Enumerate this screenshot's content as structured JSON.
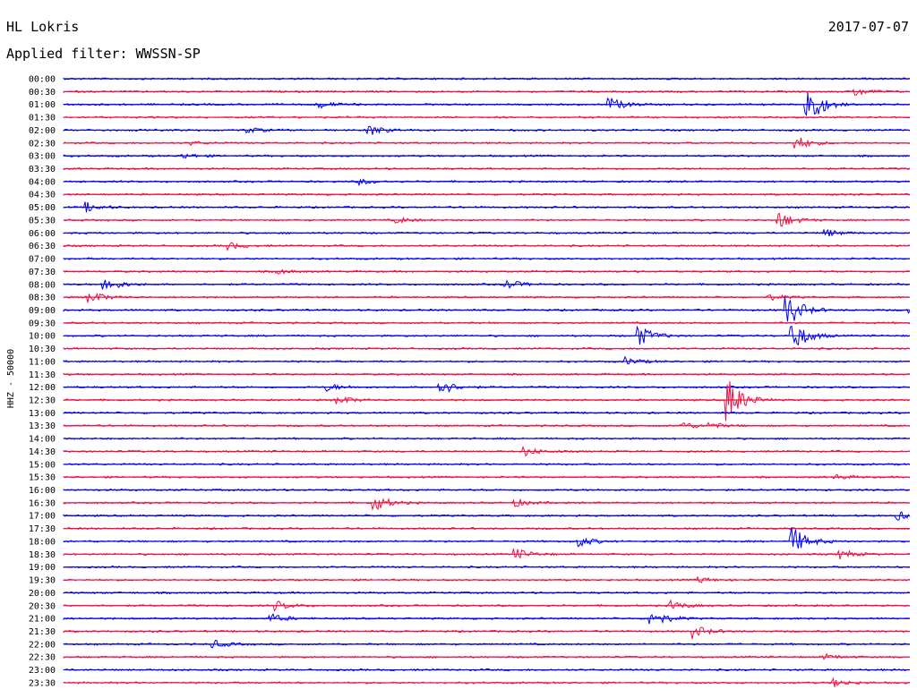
{
  "header": {
    "station": "HL Lokris",
    "date": "2017-07-07",
    "filter_label": "Applied filter: WWSSN-SP"
  },
  "colors": {
    "trace_a": "#0000ee",
    "trace_b": "#ee1144",
    "background": "#ffffff"
  },
  "chart_data": {
    "type": "line",
    "title": "HL Lokris",
    "ylabel": "HHZ - 50000",
    "row_labels": [
      "00:00",
      "00:30",
      "01:00",
      "01:30",
      "02:00",
      "02:30",
      "03:00",
      "03:30",
      "04:00",
      "04:30",
      "05:00",
      "05:30",
      "06:00",
      "06:30",
      "07:00",
      "07:30",
      "08:00",
      "08:30",
      "09:00",
      "09:30",
      "10:00",
      "10:30",
      "11:00",
      "11:30",
      "12:00",
      "12:30",
      "13:00",
      "13:30",
      "14:00",
      "14:30",
      "15:00",
      "15:30",
      "16:00",
      "16:30",
      "17:00",
      "17:30",
      "18:00",
      "18:30",
      "19:00",
      "19:30",
      "20:00",
      "20:30",
      "21:00",
      "21:30",
      "22:00",
      "22:30",
      "23:00",
      "23:30"
    ],
    "row_minutes": 30,
    "alternating_colors": [
      "blue",
      "red"
    ],
    "events": [
      {
        "row": "00:30",
        "minute": 28,
        "amplitude": 0.5
      },
      {
        "row": "01:00",
        "minute": 9,
        "amplitude": 0.4
      },
      {
        "row": "01:00",
        "minute": 19.3,
        "amplitude": 0.8
      },
      {
        "row": "01:00",
        "minute": 26.3,
        "amplitude": 2.6
      },
      {
        "row": "02:00",
        "minute": 6.5,
        "amplitude": 0.3
      },
      {
        "row": "02:00",
        "minute": 10.8,
        "amplitude": 0.6
      },
      {
        "row": "02:30",
        "minute": 4.5,
        "amplitude": 0.2
      },
      {
        "row": "02:30",
        "minute": 25.9,
        "amplitude": 0.8
      },
      {
        "row": "03:00",
        "minute": 4.2,
        "amplitude": 0.3
      },
      {
        "row": "04:00",
        "minute": 10.5,
        "amplitude": 0.3
      },
      {
        "row": "05:00",
        "minute": 0.8,
        "amplitude": 0.5
      },
      {
        "row": "05:30",
        "minute": 11.8,
        "amplitude": 0.3
      },
      {
        "row": "05:30",
        "minute": 25.3,
        "amplitude": 1.0
      },
      {
        "row": "06:00",
        "minute": 27,
        "amplitude": 0.4
      },
      {
        "row": "06:30",
        "minute": 5.8,
        "amplitude": 0.4
      },
      {
        "row": "07:30",
        "minute": 7.5,
        "amplitude": 0.3
      },
      {
        "row": "08:00",
        "minute": 1.4,
        "amplitude": 0.9
      },
      {
        "row": "08:00",
        "minute": 15.6,
        "amplitude": 0.6
      },
      {
        "row": "08:30",
        "minute": 0.9,
        "amplitude": 0.7
      },
      {
        "row": "08:30",
        "minute": 25,
        "amplitude": 0.3
      },
      {
        "row": "09:00",
        "minute": 25.6,
        "amplitude": 2.0
      },
      {
        "row": "09:00",
        "minute": 30,
        "amplitude": 0.6
      },
      {
        "row": "10:00",
        "minute": 20.3,
        "amplitude": 1.3
      },
      {
        "row": "10:00",
        "minute": 25.8,
        "amplitude": 1.8
      },
      {
        "row": "11:00",
        "minute": 19.9,
        "amplitude": 0.4
      },
      {
        "row": "12:00",
        "minute": 9.3,
        "amplitude": 0.4
      },
      {
        "row": "12:00",
        "minute": 13.3,
        "amplitude": 0.9
      },
      {
        "row": "12:30",
        "minute": 9.7,
        "amplitude": 0.5
      },
      {
        "row": "12:30",
        "minute": 23.5,
        "amplitude": 2.6
      },
      {
        "row": "13:30",
        "minute": 21.9,
        "amplitude": 0.4
      },
      {
        "row": "13:30",
        "minute": 22.9,
        "amplitude": 0.3
      },
      {
        "row": "14:30",
        "minute": 16.3,
        "amplitude": 0.5
      },
      {
        "row": "15:30",
        "minute": 27.3,
        "amplitude": 0.3
      },
      {
        "row": "16:30",
        "minute": 11,
        "amplitude": 0.9
      },
      {
        "row": "16:30",
        "minute": 16,
        "amplitude": 0.4
      },
      {
        "row": "17:00",
        "minute": 29.5,
        "amplitude": 0.5
      },
      {
        "row": "18:00",
        "minute": 18.2,
        "amplitude": 0.6
      },
      {
        "row": "18:00",
        "minute": 25.8,
        "amplitude": 1.6
      },
      {
        "row": "18:30",
        "minute": 16,
        "amplitude": 0.6
      },
      {
        "row": "18:30",
        "minute": 27.5,
        "amplitude": 0.5
      },
      {
        "row": "19:30",
        "minute": 22.5,
        "amplitude": 0.3
      },
      {
        "row": "20:30",
        "minute": 7.5,
        "amplitude": 0.5
      },
      {
        "row": "20:30",
        "minute": 21.5,
        "amplitude": 0.5
      },
      {
        "row": "21:00",
        "minute": 7.3,
        "amplitude": 0.5
      },
      {
        "row": "21:00",
        "minute": 20.8,
        "amplitude": 1.0
      },
      {
        "row": "21:30",
        "minute": 22.3,
        "amplitude": 0.7
      },
      {
        "row": "22:00",
        "minute": 5.2,
        "amplitude": 0.5
      },
      {
        "row": "22:30",
        "minute": 27,
        "amplitude": 0.3
      },
      {
        "row": "23:30",
        "minute": 27.2,
        "amplitude": 0.5
      }
    ]
  }
}
